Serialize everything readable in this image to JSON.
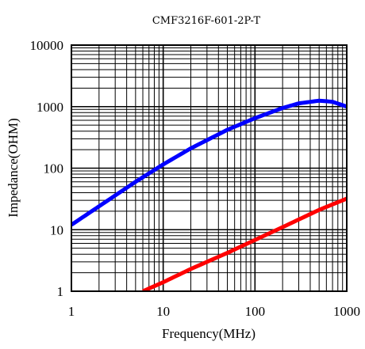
{
  "chart_data": {
    "type": "line",
    "title": "CMF3216F-601-2P-T",
    "xlabel": "Frequency(MHz)",
    "ylabel": "Impedance(OHM)",
    "x_scale": "log",
    "y_scale": "log",
    "xlim": [
      1,
      1000
    ],
    "ylim": [
      1,
      10000
    ],
    "x_ticks": [
      "1",
      "10",
      "100",
      "1000"
    ],
    "y_ticks": [
      "1",
      "10",
      "100",
      "1000",
      "10000"
    ],
    "grid": true,
    "legend": "none",
    "series": [
      {
        "color": "#0000ff",
        "x": [
          1,
          2,
          5,
          10,
          20,
          50,
          100,
          200,
          300,
          500,
          700,
          1000
        ],
        "y": [
          12,
          24,
          60,
          115,
          210,
          420,
          650,
          950,
          1130,
          1250,
          1200,
          1000
        ]
      },
      {
        "color": "#ff0000",
        "x": [
          6,
          10,
          20,
          50,
          100,
          200,
          500,
          1000
        ],
        "y": [
          1,
          1.4,
          2.3,
          4.2,
          6.8,
          11,
          21,
          32
        ]
      }
    ]
  }
}
